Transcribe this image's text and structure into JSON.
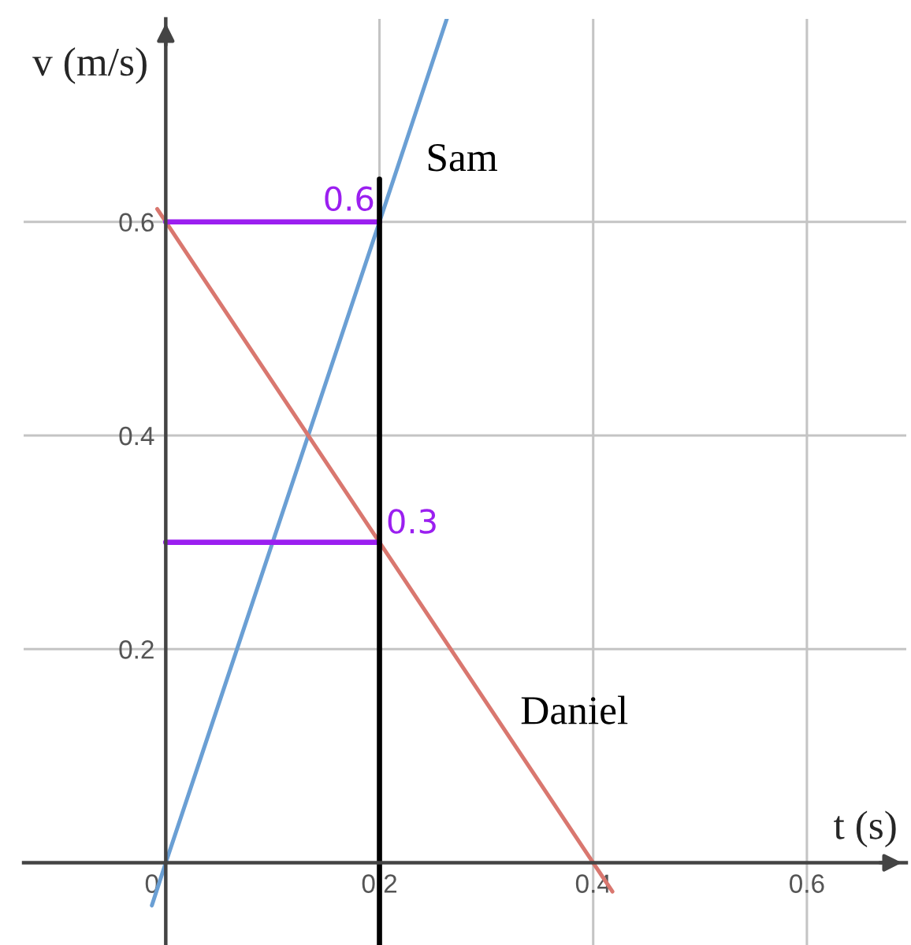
{
  "chart_data": {
    "type": "line",
    "xlabel": "t (s)",
    "ylabel": "v (m/s)",
    "xlim": [
      -0.133,
      0.693
    ],
    "ylim": [
      -0.077,
      0.79
    ],
    "xticks": [
      0,
      0.2,
      0.4,
      0.6
    ],
    "yticks": [
      0.2,
      0.4,
      0.6
    ],
    "grid": true,
    "legend": false,
    "marker": "none",
    "line_style": "solid",
    "series": [
      {
        "name": "Sam",
        "color": "#6a9fd4",
        "x": [
          -0.013,
          0,
          0.2,
          0.263
        ],
        "values": [
          -0.04,
          0,
          0.6,
          0.79
        ]
      },
      {
        "name": "Daniel",
        "color": "#d9776f",
        "x": [
          -0.008,
          0,
          0.2,
          0.4,
          0.418
        ],
        "values": [
          0.612,
          0.6,
          0.3,
          0,
          -0.027
        ]
      },
      {
        "color": "#9b1ff0",
        "x": [
          0,
          0.2
        ],
        "values": [
          0.6,
          0.6
        ]
      },
      {
        "color": "#9b1ff0",
        "x": [
          0,
          0.2
        ],
        "values": [
          0.3,
          0.3
        ]
      },
      {
        "color": "#000000",
        "x": [
          0.2,
          0.2
        ],
        "values": [
          0.64,
          -0.077
        ]
      }
    ],
    "annotations": [
      {
        "text": "0.6",
        "x": 0.2,
        "y": 0.6
      },
      {
        "text": "0.3",
        "x": 0.2,
        "y": 0.3
      }
    ]
  }
}
